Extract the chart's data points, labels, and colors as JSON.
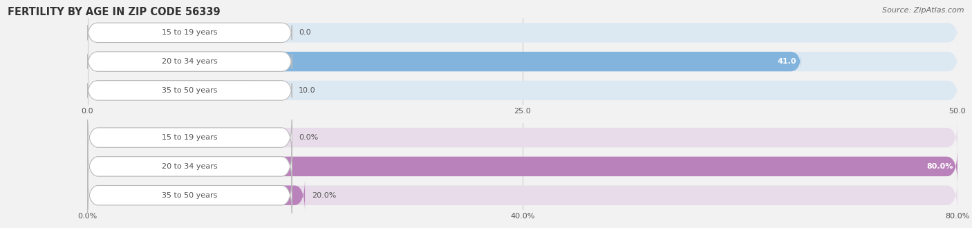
{
  "title": "FERTILITY BY AGE IN ZIP CODE 56339",
  "source": "Source: ZipAtlas.com",
  "top_chart": {
    "categories": [
      "15 to 19 years",
      "20 to 34 years",
      "35 to 50 years"
    ],
    "values": [
      0.0,
      41.0,
      10.0
    ],
    "max_val": 50.0,
    "xticks": [
      0.0,
      25.0,
      50.0
    ],
    "xtick_labels": [
      "0.0",
      "25.0",
      "50.0"
    ],
    "bar_color": "#82b4dd",
    "bg_color": "#dce8f2",
    "value_labels": [
      "0.0",
      "41.0",
      "10.0"
    ],
    "value_inside": [
      false,
      true,
      false
    ]
  },
  "bottom_chart": {
    "categories": [
      "15 to 19 years",
      "20 to 34 years",
      "35 to 50 years"
    ],
    "values": [
      0.0,
      80.0,
      20.0
    ],
    "max_val": 80.0,
    "xticks": [
      0.0,
      40.0,
      80.0
    ],
    "xtick_labels": [
      "0.0%",
      "40.0%",
      "80.0%"
    ],
    "bar_color": "#ba82ba",
    "bg_color": "#e8dcea",
    "value_labels": [
      "0.0%",
      "80.0%",
      "20.0%"
    ],
    "value_inside": [
      false,
      true,
      false
    ]
  },
  "title_fontsize": 10.5,
  "label_fontsize": 8.0,
  "value_fontsize": 8.0,
  "source_fontsize": 8,
  "bar_height": 0.68,
  "label_color": "#555555",
  "title_color": "#333333",
  "source_color": "#666666",
  "bg_fig": "#f2f2f2"
}
